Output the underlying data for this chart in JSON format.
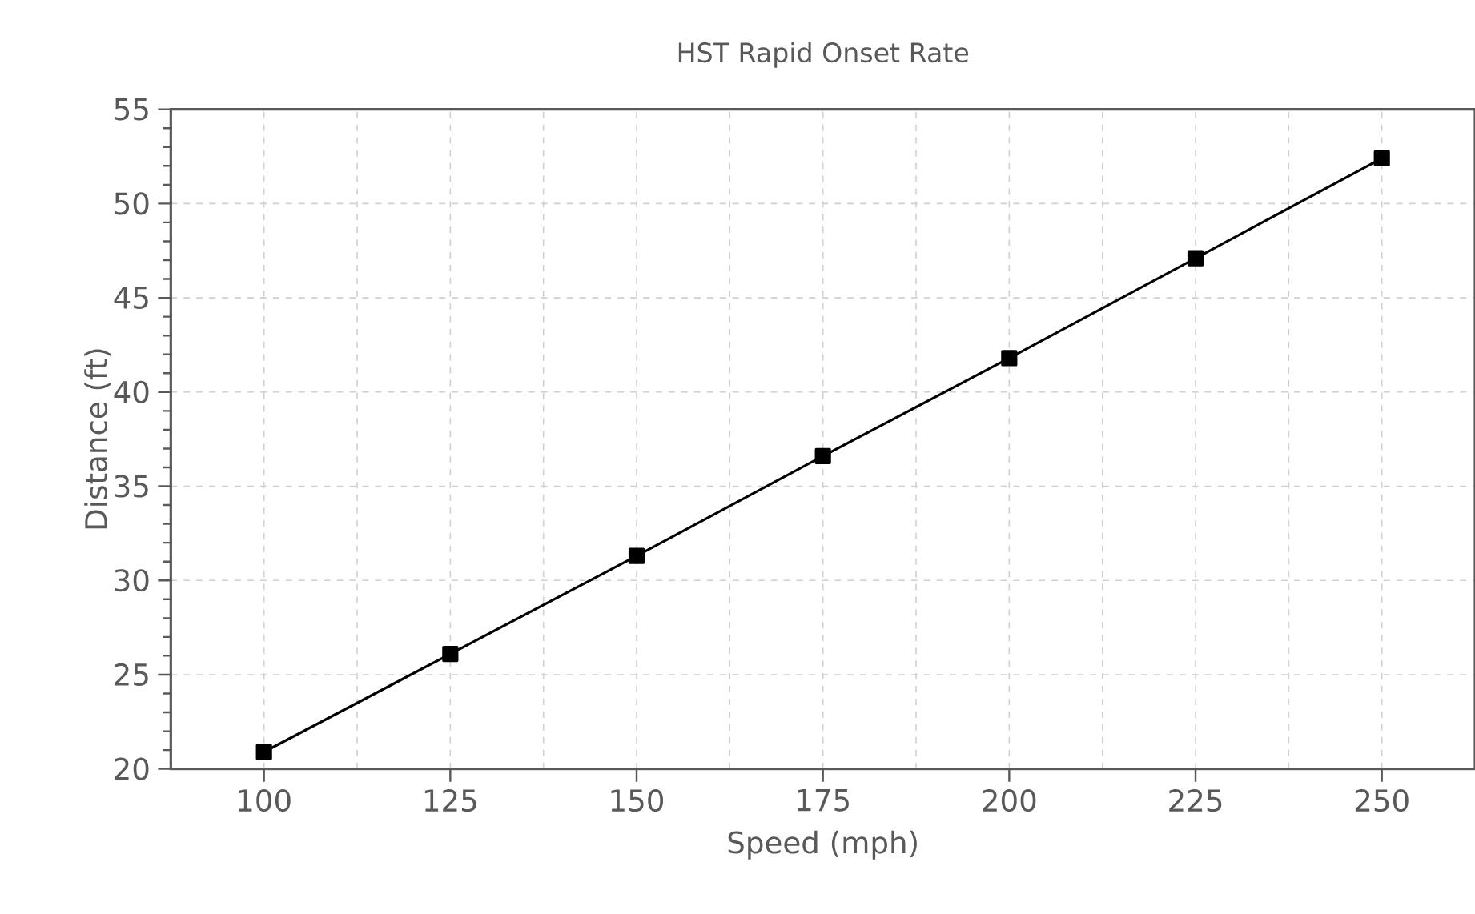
{
  "chart_data": {
    "type": "line",
    "title": "HST Rapid Onset Rate",
    "xlabel": "Speed (mph)",
    "ylabel": "Distance (ft)",
    "x": [
      100,
      125,
      150,
      175,
      200,
      225,
      250
    ],
    "series": [
      {
        "color": "#000000",
        "values": [
          20.9,
          26.1,
          31.3,
          36.6,
          41.8,
          47.1,
          52.4
        ]
      }
    ],
    "xlim": [
      87.5,
      262.5
    ],
    "ylim": [
      20,
      55
    ],
    "xticks": [
      100,
      125,
      150,
      175,
      200,
      225,
      250
    ],
    "yticks": [
      20,
      25,
      30,
      35,
      40,
      45,
      50,
      55
    ],
    "grid": true,
    "marker": "square",
    "line_style": "solid"
  }
}
